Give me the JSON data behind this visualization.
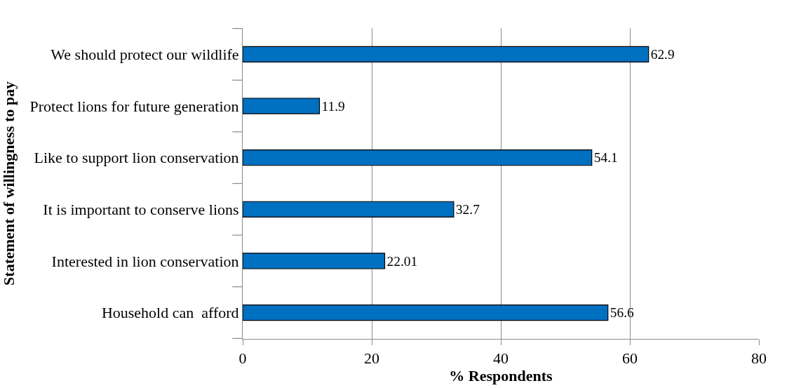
{
  "chart_data": {
    "type": "bar",
    "orientation": "horizontal",
    "xlabel": "% Respondents",
    "ylabel": "Statement of willingness to pay",
    "categories": [
      "We should protect our wildlife",
      "Protect lions for future generation",
      "Like to support lion conservation",
      "It is important to conserve lions",
      "Interested in lion conservation",
      "Household can  afford"
    ],
    "values": [
      62.9,
      11.9,
      54.1,
      32.7,
      22.01,
      56.6
    ],
    "color": "#0070c0",
    "xlim": [
      0,
      80
    ],
    "xticks": [
      0,
      20,
      40,
      60,
      80
    ],
    "grid": "x",
    "data_labels": true
  }
}
